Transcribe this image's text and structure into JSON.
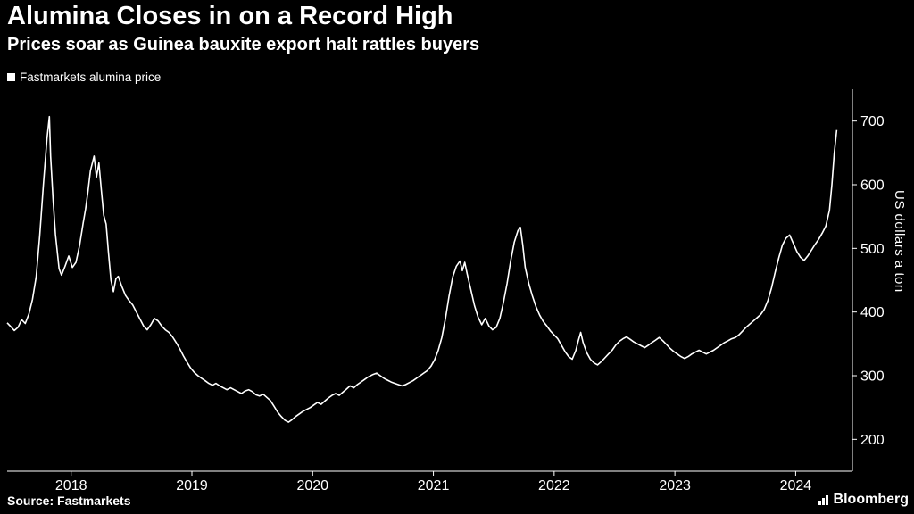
{
  "header": {
    "title": "Alumina Closes in on a Record High",
    "subtitle": "Prices soar as Guinea bauxite export halt rattles buyers"
  },
  "legend": {
    "series_label": "Fastmarkets alumina price",
    "swatch_color": "#ffffff"
  },
  "footer": {
    "source_label": "Source: Fastmarkets",
    "brand": "Bloomberg",
    "brand_icon": "bar-chart-icon"
  },
  "colors": {
    "background": "#000000",
    "text": "#ffffff",
    "line": "#ffffff",
    "axis": "#ffffff"
  },
  "chart_data": {
    "type": "line",
    "title": "Alumina Closes in on a Record High",
    "subtitle": "Prices soar as Guinea bauxite export halt rattles buyers",
    "xlabel": "",
    "ylabel": "US dollars a ton",
    "x_unit": "decimal year",
    "xlim": [
      2017.97,
      2024.97
    ],
    "ylim": [
      150,
      750
    ],
    "yticks": [
      200,
      300,
      400,
      500,
      600,
      700
    ],
    "xticks": [
      {
        "label": "2018",
        "x": 2018.5
      },
      {
        "label": "2019",
        "x": 2019.5
      },
      {
        "label": "2020",
        "x": 2020.5
      },
      {
        "label": "2021",
        "x": 2021.5
      },
      {
        "label": "2022",
        "x": 2022.5
      },
      {
        "label": "2023",
        "x": 2023.5
      },
      {
        "label": "2024",
        "x": 2024.5
      }
    ],
    "grid": false,
    "legend_position": "top-left",
    "y_axis_side": "right",
    "series": [
      {
        "name": "Fastmarkets alumina price",
        "color": "#ffffff",
        "points": [
          [
            2017.97,
            383
          ],
          [
            2018.0,
            377
          ],
          [
            2018.03,
            371
          ],
          [
            2018.06,
            376
          ],
          [
            2018.09,
            388
          ],
          [
            2018.12,
            382
          ],
          [
            2018.15,
            397
          ],
          [
            2018.18,
            420
          ],
          [
            2018.21,
            455
          ],
          [
            2018.24,
            520
          ],
          [
            2018.27,
            600
          ],
          [
            2018.3,
            672
          ],
          [
            2018.32,
            707
          ],
          [
            2018.33,
            645
          ],
          [
            2018.35,
            578
          ],
          [
            2018.37,
            522
          ],
          [
            2018.4,
            468
          ],
          [
            2018.42,
            458
          ],
          [
            2018.45,
            472
          ],
          [
            2018.48,
            488
          ],
          [
            2018.51,
            470
          ],
          [
            2018.54,
            478
          ],
          [
            2018.57,
            505
          ],
          [
            2018.6,
            540
          ],
          [
            2018.62,
            562
          ],
          [
            2018.64,
            590
          ],
          [
            2018.66,
            622
          ],
          [
            2018.69,
            645
          ],
          [
            2018.71,
            612
          ],
          [
            2018.73,
            634
          ],
          [
            2018.75,
            592
          ],
          [
            2018.77,
            552
          ],
          [
            2018.79,
            538
          ],
          [
            2018.81,
            492
          ],
          [
            2018.83,
            450
          ],
          [
            2018.85,
            432
          ],
          [
            2018.87,
            452
          ],
          [
            2018.89,
            456
          ],
          [
            2018.92,
            440
          ],
          [
            2018.95,
            426
          ],
          [
            2018.98,
            418
          ],
          [
            2019.01,
            411
          ],
          [
            2019.04,
            400
          ],
          [
            2019.07,
            389
          ],
          [
            2019.1,
            378
          ],
          [
            2019.13,
            372
          ],
          [
            2019.16,
            380
          ],
          [
            2019.19,
            390
          ],
          [
            2019.22,
            386
          ],
          [
            2019.25,
            378
          ],
          [
            2019.28,
            372
          ],
          [
            2019.31,
            368
          ],
          [
            2019.34,
            361
          ],
          [
            2019.37,
            352
          ],
          [
            2019.4,
            342
          ],
          [
            2019.43,
            331
          ],
          [
            2019.46,
            321
          ],
          [
            2019.49,
            312
          ],
          [
            2019.52,
            305
          ],
          [
            2019.55,
            300
          ],
          [
            2019.58,
            296
          ],
          [
            2019.61,
            292
          ],
          [
            2019.64,
            288
          ],
          [
            2019.67,
            285
          ],
          [
            2019.7,
            288
          ],
          [
            2019.73,
            284
          ],
          [
            2019.76,
            281
          ],
          [
            2019.79,
            278
          ],
          [
            2019.82,
            281
          ],
          [
            2019.85,
            278
          ],
          [
            2019.88,
            275
          ],
          [
            2019.91,
            272
          ],
          [
            2019.94,
            276
          ],
          [
            2019.97,
            278
          ],
          [
            2020.0,
            275
          ],
          [
            2020.03,
            270
          ],
          [
            2020.06,
            268
          ],
          [
            2020.09,
            271
          ],
          [
            2020.12,
            266
          ],
          [
            2020.15,
            261
          ],
          [
            2020.18,
            252
          ],
          [
            2020.21,
            243
          ],
          [
            2020.24,
            236
          ],
          [
            2020.27,
            230
          ],
          [
            2020.3,
            227
          ],
          [
            2020.33,
            231
          ],
          [
            2020.36,
            236
          ],
          [
            2020.39,
            240
          ],
          [
            2020.42,
            244
          ],
          [
            2020.45,
            247
          ],
          [
            2020.48,
            250
          ],
          [
            2020.51,
            254
          ],
          [
            2020.54,
            258
          ],
          [
            2020.57,
            255
          ],
          [
            2020.6,
            260
          ],
          [
            2020.63,
            265
          ],
          [
            2020.66,
            269
          ],
          [
            2020.69,
            272
          ],
          [
            2020.72,
            269
          ],
          [
            2020.75,
            274
          ],
          [
            2020.78,
            279
          ],
          [
            2020.81,
            284
          ],
          [
            2020.84,
            281
          ],
          [
            2020.87,
            286
          ],
          [
            2020.9,
            290
          ],
          [
            2020.93,
            294
          ],
          [
            2020.96,
            298
          ],
          [
            2021.0,
            302
          ],
          [
            2021.03,
            304
          ],
          [
            2021.06,
            300
          ],
          [
            2021.09,
            296
          ],
          [
            2021.12,
            293
          ],
          [
            2021.15,
            290
          ],
          [
            2021.18,
            288
          ],
          [
            2021.21,
            286
          ],
          [
            2021.24,
            284
          ],
          [
            2021.27,
            286
          ],
          [
            2021.3,
            289
          ],
          [
            2021.33,
            292
          ],
          [
            2021.36,
            296
          ],
          [
            2021.39,
            300
          ],
          [
            2021.42,
            304
          ],
          [
            2021.45,
            308
          ],
          [
            2021.48,
            315
          ],
          [
            2021.51,
            325
          ],
          [
            2021.54,
            340
          ],
          [
            2021.57,
            360
          ],
          [
            2021.6,
            390
          ],
          [
            2021.63,
            425
          ],
          [
            2021.66,
            455
          ],
          [
            2021.69,
            472
          ],
          [
            2021.72,
            480
          ],
          [
            2021.74,
            465
          ],
          [
            2021.76,
            478
          ],
          [
            2021.78,
            460
          ],
          [
            2021.81,
            435
          ],
          [
            2021.84,
            410
          ],
          [
            2021.87,
            392
          ],
          [
            2021.9,
            380
          ],
          [
            2021.93,
            390
          ],
          [
            2021.96,
            378
          ],
          [
            2021.99,
            372
          ],
          [
            2022.02,
            376
          ],
          [
            2022.05,
            390
          ],
          [
            2022.08,
            415
          ],
          [
            2022.11,
            445
          ],
          [
            2022.14,
            480
          ],
          [
            2022.17,
            510
          ],
          [
            2022.2,
            528
          ],
          [
            2022.22,
            533
          ],
          [
            2022.24,
            505
          ],
          [
            2022.26,
            470
          ],
          [
            2022.29,
            445
          ],
          [
            2022.32,
            425
          ],
          [
            2022.35,
            408
          ],
          [
            2022.38,
            395
          ],
          [
            2022.41,
            385
          ],
          [
            2022.44,
            378
          ],
          [
            2022.47,
            370
          ],
          [
            2022.5,
            364
          ],
          [
            2022.53,
            358
          ],
          [
            2022.56,
            348
          ],
          [
            2022.59,
            338
          ],
          [
            2022.62,
            330
          ],
          [
            2022.65,
            326
          ],
          [
            2022.68,
            340
          ],
          [
            2022.7,
            355
          ],
          [
            2022.72,
            368
          ],
          [
            2022.74,
            352
          ],
          [
            2022.77,
            336
          ],
          [
            2022.8,
            326
          ],
          [
            2022.83,
            320
          ],
          [
            2022.86,
            317
          ],
          [
            2022.89,
            322
          ],
          [
            2022.92,
            328
          ],
          [
            2022.95,
            334
          ],
          [
            2022.98,
            340
          ],
          [
            2023.01,
            348
          ],
          [
            2023.04,
            354
          ],
          [
            2023.07,
            358
          ],
          [
            2023.1,
            361
          ],
          [
            2023.13,
            357
          ],
          [
            2023.16,
            353
          ],
          [
            2023.19,
            350
          ],
          [
            2023.22,
            347
          ],
          [
            2023.25,
            344
          ],
          [
            2023.28,
            348
          ],
          [
            2023.31,
            352
          ],
          [
            2023.34,
            356
          ],
          [
            2023.37,
            360
          ],
          [
            2023.4,
            355
          ],
          [
            2023.43,
            349
          ],
          [
            2023.46,
            343
          ],
          [
            2023.49,
            338
          ],
          [
            2023.52,
            334
          ],
          [
            2023.55,
            330
          ],
          [
            2023.58,
            327
          ],
          [
            2023.61,
            330
          ],
          [
            2023.64,
            334
          ],
          [
            2023.67,
            337
          ],
          [
            2023.7,
            340
          ],
          [
            2023.73,
            337
          ],
          [
            2023.76,
            334
          ],
          [
            2023.79,
            337
          ],
          [
            2023.82,
            340
          ],
          [
            2023.85,
            344
          ],
          [
            2023.88,
            348
          ],
          [
            2023.91,
            352
          ],
          [
            2023.94,
            355
          ],
          [
            2023.97,
            358
          ],
          [
            2024.0,
            360
          ],
          [
            2024.03,
            364
          ],
          [
            2024.06,
            370
          ],
          [
            2024.09,
            376
          ],
          [
            2024.12,
            381
          ],
          [
            2024.15,
            386
          ],
          [
            2024.18,
            391
          ],
          [
            2024.21,
            396
          ],
          [
            2024.24,
            404
          ],
          [
            2024.27,
            418
          ],
          [
            2024.3,
            438
          ],
          [
            2024.33,
            462
          ],
          [
            2024.36,
            485
          ],
          [
            2024.39,
            505
          ],
          [
            2024.42,
            516
          ],
          [
            2024.45,
            521
          ],
          [
            2024.48,
            508
          ],
          [
            2024.51,
            495
          ],
          [
            2024.54,
            486
          ],
          [
            2024.57,
            481
          ],
          [
            2024.6,
            488
          ],
          [
            2024.63,
            497
          ],
          [
            2024.66,
            506
          ],
          [
            2024.69,
            514
          ],
          [
            2024.72,
            524
          ],
          [
            2024.75,
            535
          ],
          [
            2024.78,
            560
          ],
          [
            2024.8,
            600
          ],
          [
            2024.82,
            650
          ],
          [
            2024.84,
            686
          ]
        ]
      }
    ]
  }
}
